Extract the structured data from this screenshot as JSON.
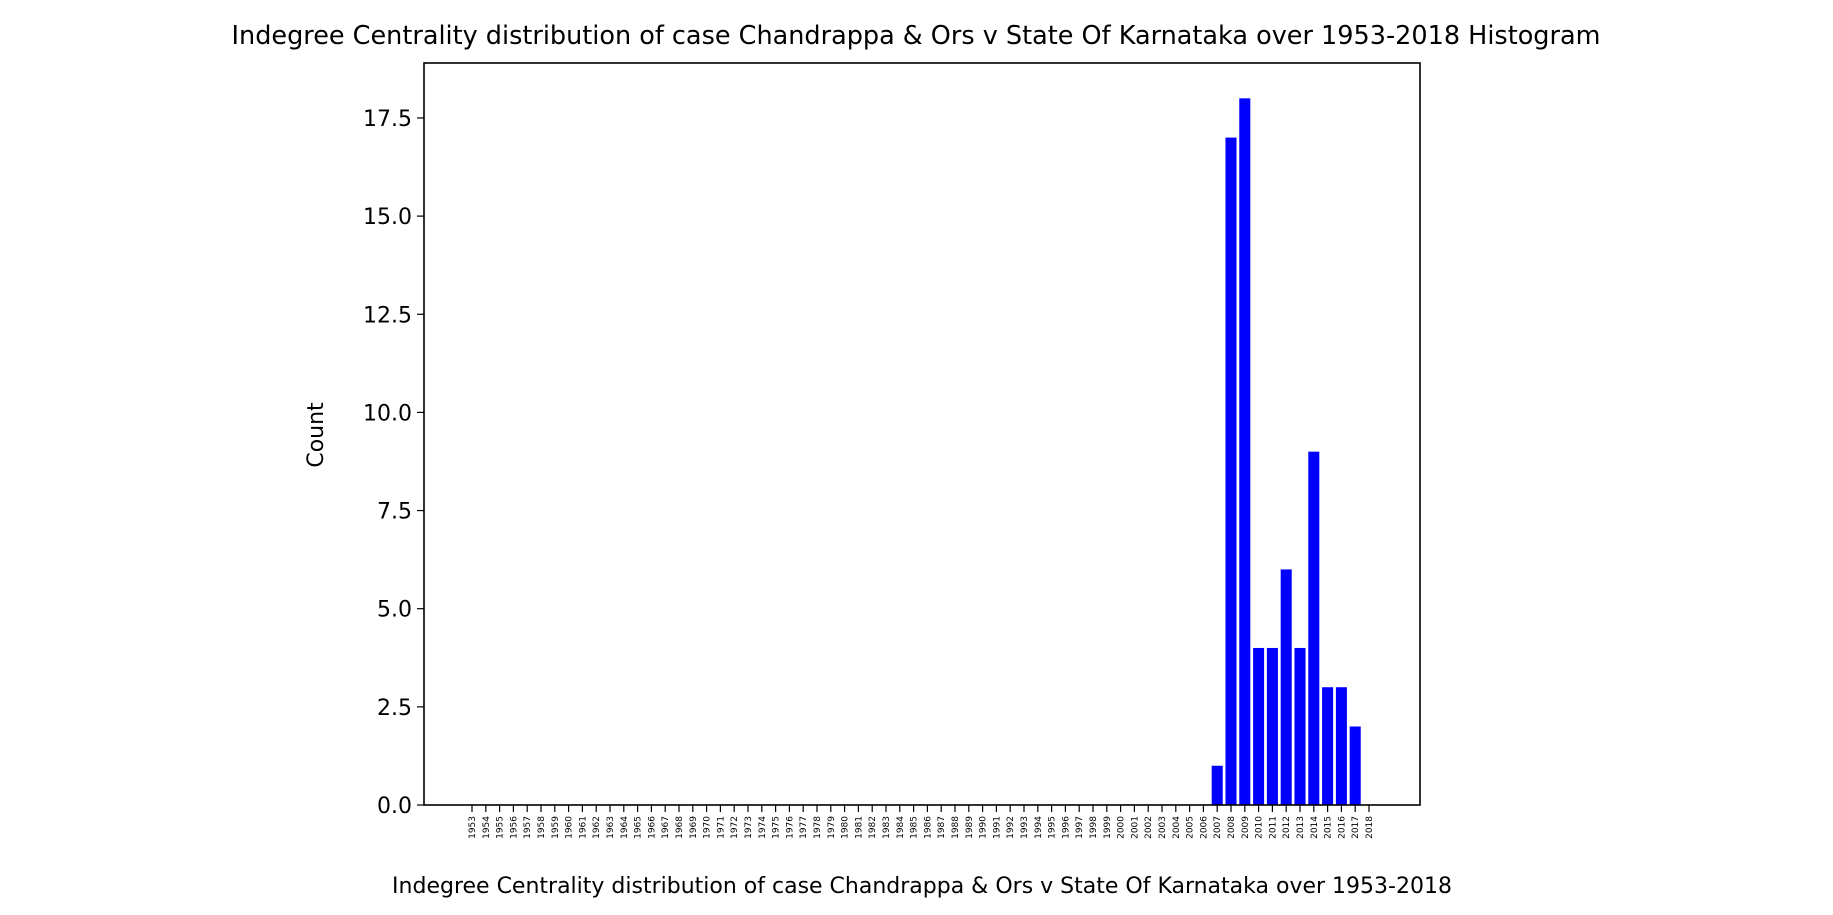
{
  "chart_data": {
    "type": "bar",
    "title": "Indegree Centrality distribution of case Chandrappa & Ors v State Of Karnataka over 1953-2018 Histogram",
    "xlabel": "Indegree Centrality distribution of case Chandrappa & Ors v State Of Karnataka over 1953-2018",
    "ylabel": "Count",
    "ylim": [
      0,
      18.9
    ],
    "yticks": [
      "0.0",
      "2.5",
      "5.0",
      "7.5",
      "10.0",
      "12.5",
      "15.0",
      "17.5"
    ],
    "grid": false,
    "bar_color": "#0000ff",
    "categories": [
      "1953",
      "1954",
      "1955",
      "1956",
      "1957",
      "1958",
      "1959",
      "1960",
      "1961",
      "1962",
      "1963",
      "1964",
      "1965",
      "1966",
      "1967",
      "1968",
      "1969",
      "1970",
      "1971",
      "1972",
      "1973",
      "1974",
      "1975",
      "1976",
      "1977",
      "1978",
      "1979",
      "1980",
      "1981",
      "1982",
      "1983",
      "1984",
      "1985",
      "1986",
      "1987",
      "1988",
      "1989",
      "1990",
      "1991",
      "1992",
      "1993",
      "1994",
      "1995",
      "1996",
      "1997",
      "1998",
      "1999",
      "2000",
      "2001",
      "2002",
      "2003",
      "2004",
      "2005",
      "2006",
      "2007",
      "2008",
      "2009",
      "2010",
      "2011",
      "2012",
      "2013",
      "2014",
      "2015",
      "2016",
      "2017",
      "2018"
    ],
    "values": [
      0,
      0,
      0,
      0,
      0,
      0,
      0,
      0,
      0,
      0,
      0,
      0,
      0,
      0,
      0,
      0,
      0,
      0,
      0,
      0,
      0,
      0,
      0,
      0,
      0,
      0,
      0,
      0,
      0,
      0,
      0,
      0,
      0,
      0,
      0,
      0,
      0,
      0,
      0,
      0,
      0,
      0,
      0,
      0,
      0,
      0,
      0,
      0,
      0,
      0,
      0,
      0,
      0,
      0,
      1,
      17,
      18,
      4,
      4,
      6,
      4,
      9,
      3,
      3,
      2,
      0
    ]
  }
}
